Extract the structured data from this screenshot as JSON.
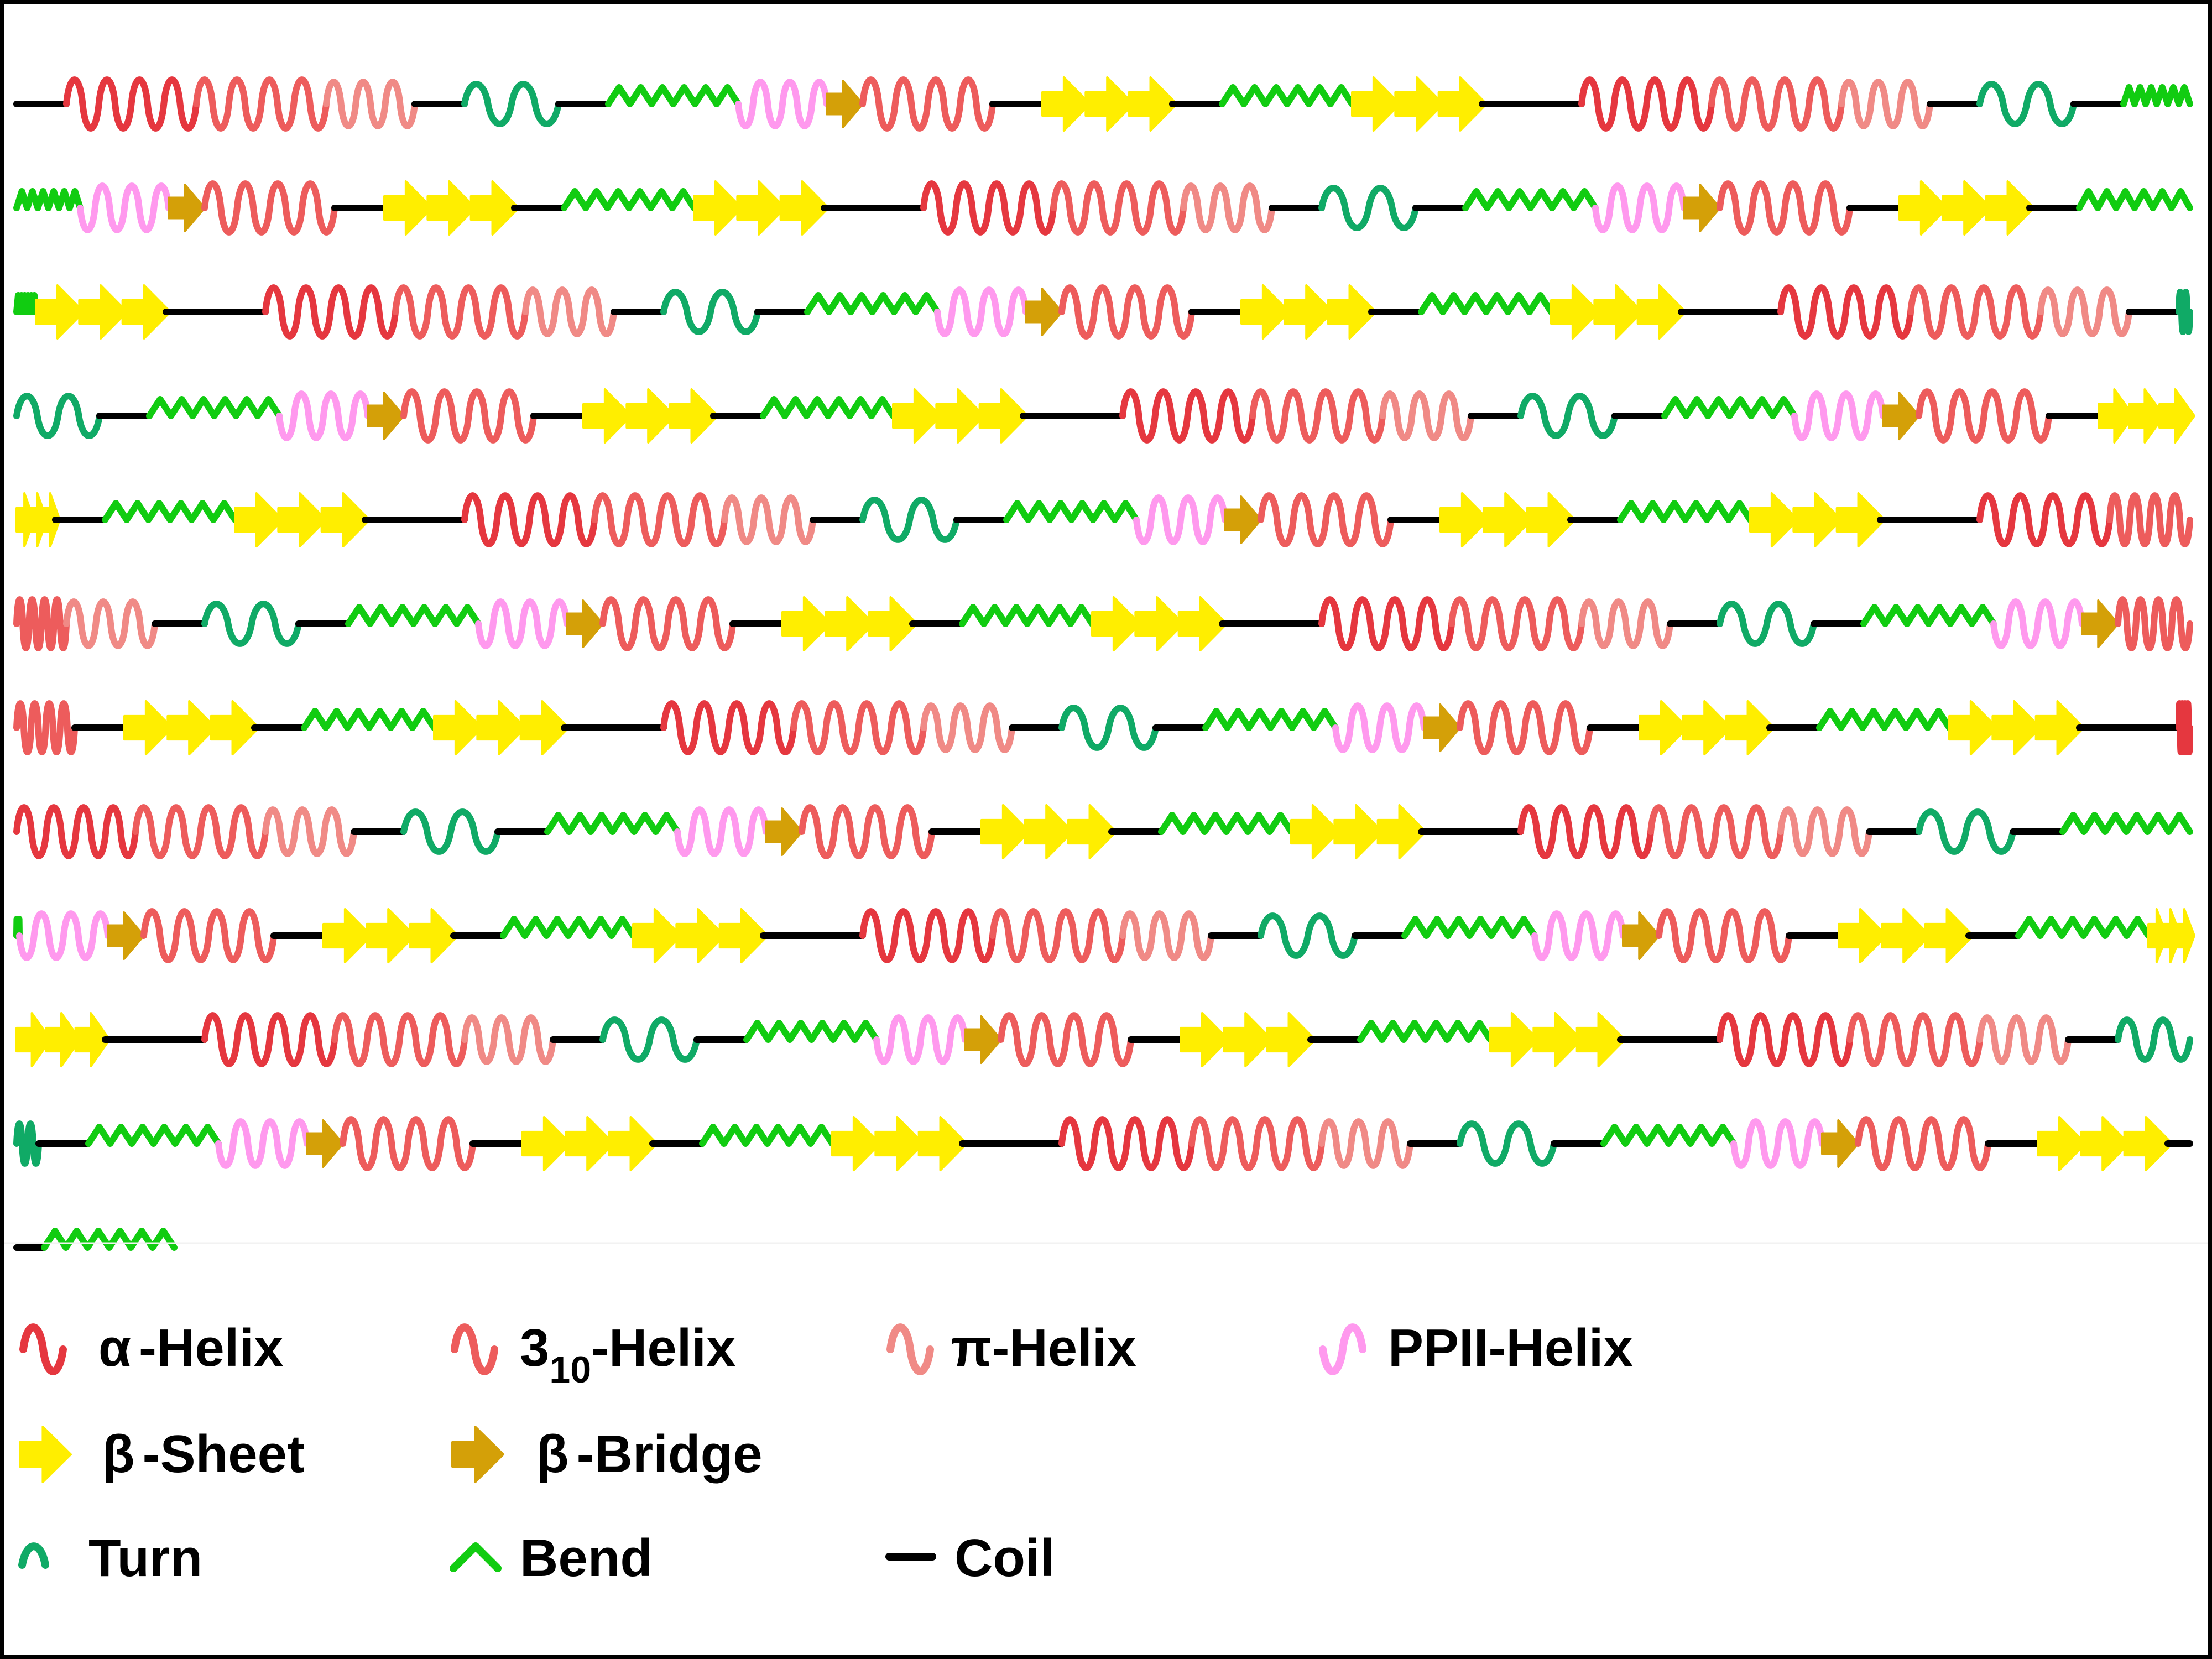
{
  "colors": {
    "alpha_helix": "#e5373f",
    "helix_310": "#ed5c5c",
    "pi_helix": "#f08a86",
    "ppii_helix": "#ff99ee",
    "sheet": "#ffee00",
    "bridge": "#d4a008",
    "turn": "#10aa66",
    "bend": "#11cc11",
    "coil": "#000000"
  },
  "legend": {
    "alpha_helix": {
      "prefix": "α",
      "label": "-Helix",
      "icon": "alpha-helix-icon"
    },
    "helix_310": {
      "base": "3",
      "sub": "10",
      "label": "-Helix",
      "icon": "310-helix-icon"
    },
    "pi_helix": {
      "label": "π-Helix",
      "icon": "pi-helix-icon"
    },
    "ppii_helix": {
      "label": "PPII-Helix",
      "icon": "ppii-helix-icon"
    },
    "sheet": {
      "prefix": "β",
      "label": "-Sheet",
      "icon": "sheet-arrow-icon"
    },
    "bridge": {
      "prefix": "β",
      "label": "-Bridge",
      "icon": "bridge-arrow-icon"
    },
    "turn": {
      "label": "Turn",
      "icon": "turn-icon"
    },
    "bend": {
      "label": "Bend",
      "icon": "bend-icon"
    },
    "coil": {
      "label": "Coil",
      "icon": "coil-icon"
    }
  },
  "sequence": {
    "repeat_unit": [
      "coil",
      "alpha",
      "h310",
      "pi",
      "coil",
      "turn",
      "coil",
      "bend",
      "ppii",
      "bridge",
      "h310",
      "coil",
      "sheet",
      "coil",
      "bend",
      "sheet",
      "coil"
    ],
    "repeat_count": 16,
    "tail_trim": 2
  }
}
